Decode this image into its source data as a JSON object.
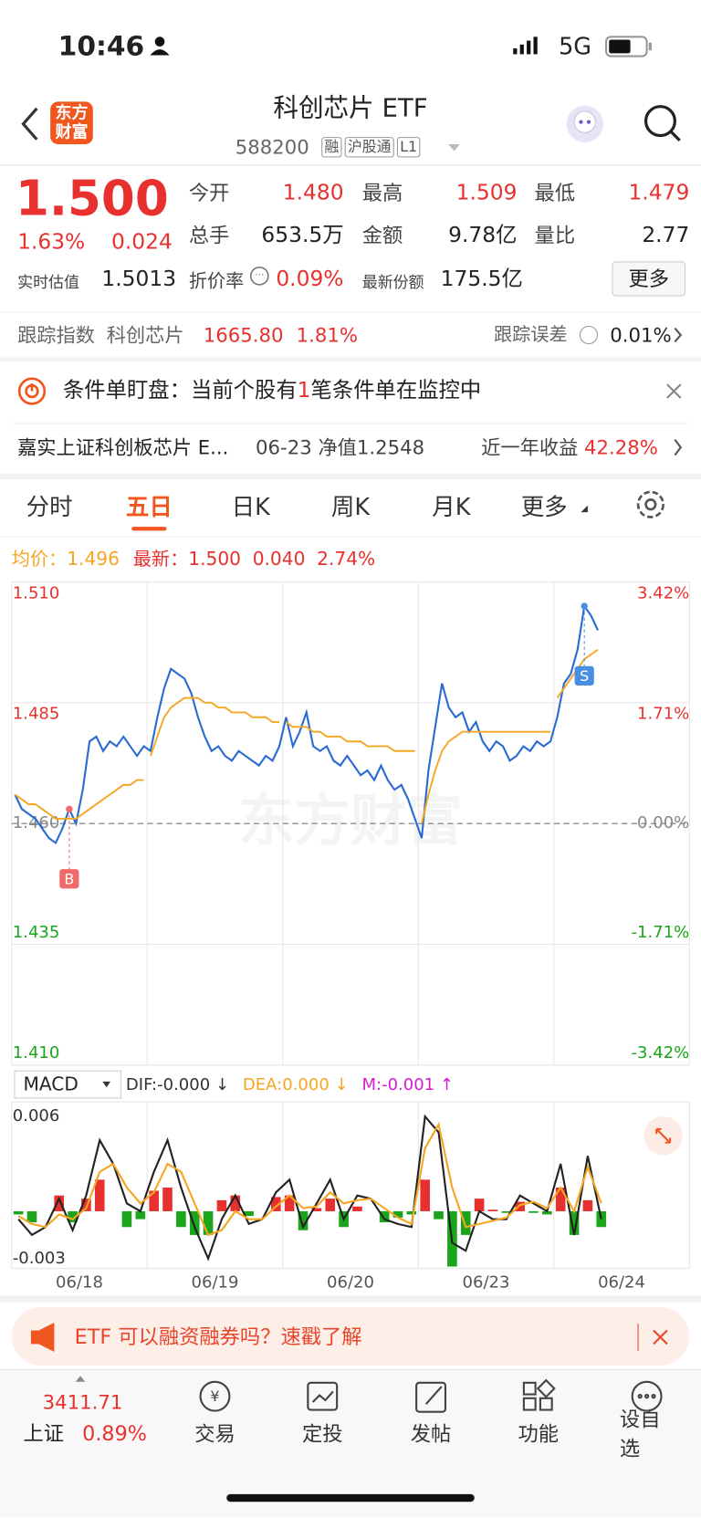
{
  "status_bar": {
    "time": "10:46",
    "network": "5G"
  },
  "header": {
    "logo": "东方财富",
    "title": "科创芯片 ETF",
    "code": "588200",
    "tags": [
      "融",
      "沪股通",
      "L1"
    ]
  },
  "quote": {
    "price": "1.500",
    "change_pct": "1.63%",
    "change": "0.024",
    "fields": [
      {
        "label": "今开",
        "value": "1.480"
      },
      {
        "label": "最高",
        "value": "1.509"
      },
      {
        "label": "最低",
        "value": "1.479"
      },
      {
        "label": "总手",
        "value": "653.5万"
      },
      {
        "label": "金额",
        "value": "9.78亿"
      },
      {
        "label": "量比",
        "value": "2.77"
      }
    ],
    "estimate_label": "实时估值",
    "estimate": "1.5013",
    "discount_label": "折价率",
    "discount": "0.09%",
    "shares_label": "最新份额",
    "shares": "175.5亿",
    "more": "更多"
  },
  "tracking": {
    "label": "跟踪指数",
    "index": "科创芯片",
    "value": "1665.80",
    "change_pct": "1.81%",
    "error_label": "跟踪误差",
    "error": "0.01%"
  },
  "alert": {
    "prefix": "条件单盯盘：当前个股有",
    "count": "1",
    "suffix": "笔条件单在监控中"
  },
  "fund": {
    "name": "嘉实上证科创板芯片 E...",
    "date": "06-23",
    "nav_label": "净值",
    "nav": "1.2548",
    "return_label": "近一年收益",
    "return": "42.28%"
  },
  "tabs": {
    "items": [
      "分时",
      "五日",
      "日K",
      "周K",
      "月K",
      "更多"
    ],
    "active": 1
  },
  "chart_info": {
    "avg_label": "均价：",
    "avg": "1.496",
    "last_label": "最新：",
    "last": "1.500",
    "change": "0.040",
    "change_pct": "2.74%"
  },
  "chart_data": [
    {
      "type": "line",
      "categories": [
        "06/18",
        "06/19",
        "06/20",
        "06/23",
        "06/24"
      ],
      "ylim": [
        1.41,
        1.51
      ],
      "yticks": [
        {
          "value": 1.51,
          "label": "1.510"
        },
        {
          "value": 1.485,
          "label": "1.485"
        },
        {
          "value": 1.46,
          "label": "1.460"
        },
        {
          "value": 1.435,
          "label": "1.435"
        },
        {
          "value": 1.41,
          "label": "1.410"
        }
      ],
      "y2lim": [
        -3.42,
        3.42
      ],
      "y2ticks": [
        {
          "value": 3.42,
          "label": "3.42%"
        },
        {
          "value": 1.71,
          "label": "1.71%"
        },
        {
          "value": 0,
          "label": "0.00%"
        },
        {
          "value": -1.71,
          "label": "-1.71%"
        },
        {
          "value": -3.42,
          "label": "-3.42%"
        }
      ],
      "grid": true,
      "watermark": "东方财富",
      "series": [
        {
          "color": "#2a6bd3",
          "values": [
            [
              1.466,
              1.463,
              1.462,
              1.461,
              1.459,
              1.457,
              1.456,
              1.459,
              1.463,
              1.46,
              1.467,
              1.477,
              1.478,
              1.475,
              1.477,
              1.476,
              1.478,
              1.476,
              1.474,
              1.476
            ],
            [
              1.475,
              1.482,
              1.488,
              1.492,
              1.491,
              1.49,
              1.487,
              1.482,
              1.478,
              1.475,
              1.476,
              1.474,
              1.473,
              1.475,
              1.474,
              1.473,
              1.472,
              1.474,
              1.473,
              1.476
            ],
            [
              1.482,
              1.476,
              1.479,
              1.483,
              1.476,
              1.475,
              1.476,
              1.473,
              1.472,
              1.474,
              1.472,
              1.47,
              1.471,
              1.469,
              1.472,
              1.469,
              1.467,
              1.468,
              1.465,
              1.461
            ],
            [
              1.457,
              1.471,
              1.48,
              1.489,
              1.484,
              1.482,
              1.483,
              1.479,
              1.481,
              1.477,
              1.475,
              1.477,
              1.476,
              1.473,
              1.474,
              1.476,
              1.475,
              1.477,
              1.476,
              1.477
            ],
            [
              1.482,
              1.489,
              1.491,
              1.496,
              1.505,
              1.503,
              1.5
            ]
          ]
        },
        {
          "color": "#f5a623",
          "values": [
            [
              1.466,
              1.465,
              1.464,
              1.464,
              1.463,
              1.462,
              1.461,
              1.461,
              1.461,
              1.461,
              1.462,
              1.463,
              1.464,
              1.465,
              1.466,
              1.467,
              1.468,
              1.468,
              1.469,
              1.469
            ],
            [
              1.474,
              1.478,
              1.482,
              1.484,
              1.485,
              1.486,
              1.486,
              1.486,
              1.485,
              1.485,
              1.484,
              1.484,
              1.483,
              1.483,
              1.483,
              1.482,
              1.482,
              1.482,
              1.481,
              1.481
            ],
            [
              1.481,
              1.48,
              1.48,
              1.48,
              1.479,
              1.479,
              1.478,
              1.478,
              1.478,
              1.477,
              1.477,
              1.477,
              1.476,
              1.476,
              1.476,
              1.476,
              1.475,
              1.475,
              1.475,
              1.475
            ],
            [
              1.46,
              1.466,
              1.471,
              1.475,
              1.477,
              1.478,
              1.479,
              1.479,
              1.479,
              1.479,
              1.479,
              1.479,
              1.479,
              1.479,
              1.479,
              1.479,
              1.479,
              1.479,
              1.479,
              1.479
            ],
            [
              1.486,
              1.488,
              1.49,
              1.492,
              1.494,
              1.495,
              1.496
            ]
          ]
        }
      ],
      "annotations": [
        {
          "text": "B",
          "day": 0,
          "index": 8,
          "color": "#f06a6a"
        },
        {
          "text": "S",
          "day": 4,
          "index": 4,
          "color": "#4a90e2"
        }
      ]
    },
    {
      "type": "macd",
      "legend_title": "MACD",
      "legend": [
        {
          "text": "DIF:-0.000 ↓",
          "color": "#333333"
        },
        {
          "text": "DEA:0.000 ↓",
          "color": "#f5a623"
        },
        {
          "text": "M:-0.001 ↑",
          "color": "#d21fd2"
        }
      ],
      "ylim": [
        -0.0035,
        0.0068
      ],
      "yticks": [
        0.006,
        -0.003
      ],
      "series": [
        {
          "color": "#222222",
          "values": [
            [
              -0.0005,
              -0.0015,
              -0.001,
              0.0008,
              -0.0012,
              0.001,
              0.0045,
              0.003,
              0.0005,
              0
            ],
            [
              0.0025,
              0.0045,
              0.0015,
              -0.001,
              -0.003,
              -0.0005,
              0.001,
              -0.0008,
              -0.0005,
              0.0012
            ],
            [
              0.002,
              -0.001,
              0.0005,
              0.002,
              -0.0005,
              0.001,
              0.0008,
              -0.0005,
              -0.0008,
              -0.001
            ],
            [
              0.006,
              0.005,
              -0.002,
              -0.0025,
              0,
              -0.0005,
              -0.0005,
              0.001,
              0.0005,
              0
            ],
            [
              0.003,
              -0.0015,
              0.0035,
              -0.0005
            ]
          ]
        },
        {
          "color": "#f5a623",
          "values": [
            [
              -0.0003,
              -0.0008,
              -0.001,
              -0.0002,
              -0.0005,
              0.0002,
              0.0025,
              0.003,
              0.0015,
              0.0005
            ],
            [
              0.0012,
              0.003,
              0.0025,
              0.0005,
              -0.0015,
              -0.0012,
              0,
              -0.0005,
              -0.0005,
              0.0003
            ],
            [
              0.001,
              0.0002,
              0.0003,
              0.0012,
              0.0005,
              0.0007,
              0.0008,
              0.0002,
              -0.0004,
              -0.0008
            ],
            [
              0.004,
              0.0055,
              0.0015,
              -0.001,
              -0.0008,
              -0.0006,
              -0.0004,
              0.0004,
              0.0006,
              0.0002
            ],
            [
              0.0015,
              0,
              0.0028,
              0.0005
            ]
          ]
        },
        {
          "colors": [
            "#e8312f",
            "#1aa51a"
          ],
          "values": [
            [
              -0.0002,
              -0.0007,
              0,
              0.001,
              -0.0007,
              0.0008,
              0.002,
              0,
              -0.001,
              -0.0005
            ],
            [
              0.0013,
              0.0015,
              -0.001,
              -0.0015,
              -0.0015,
              0.0007,
              0.001,
              -0.0003,
              0,
              0.0009
            ],
            [
              0.001,
              -0.0012,
              0.0002,
              0.0008,
              -0.001,
              0.0003,
              0,
              -0.0007,
              -0.0004,
              -0.0002
            ],
            [
              0.002,
              -0.0005,
              -0.0035,
              -0.0015,
              0.0008,
              0.0001,
              -0.0001,
              0.0006,
              -0.0001,
              -0.0002
            ],
            [
              0.0015,
              -0.0015,
              0.0007,
              -0.001
            ]
          ]
        }
      ]
    }
  ],
  "banner": {
    "text": "ETF 可以融资融券吗？速戳了解"
  },
  "bottom_nav": {
    "index_value": "3411.71",
    "index_name": "上证",
    "index_change": "0.89%",
    "items": [
      "交易",
      "定投",
      "发帖",
      "功能",
      "设自选"
    ]
  }
}
